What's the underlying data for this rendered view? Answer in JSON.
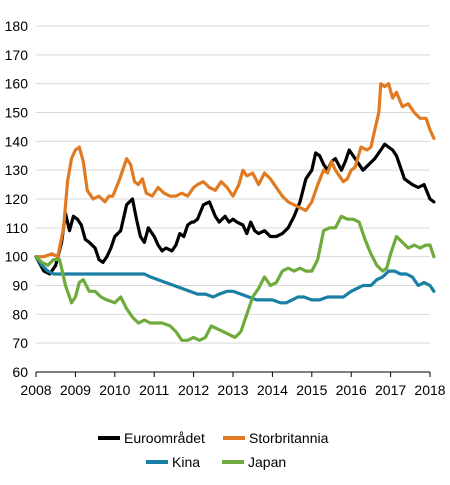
{
  "chart_data": {
    "type": "line",
    "title": "",
    "xlabel": "",
    "ylabel": "",
    "xlim": [
      2008,
      2018
    ],
    "ylim": [
      60,
      180
    ],
    "y_ticks": [
      60,
      70,
      80,
      90,
      100,
      110,
      120,
      130,
      140,
      150,
      160,
      170,
      180
    ],
    "x_ticks": [
      2008,
      2009,
      2010,
      2011,
      2012,
      2013,
      2014,
      2015,
      2016,
      2017,
      2018
    ],
    "grid": "horizontal",
    "legend_position": "bottom",
    "series": [
      {
        "name": "Euroområdet",
        "color": "#000000",
        "x": [
          2008.0,
          2008.2,
          2008.35,
          2008.5,
          2008.65,
          2008.75,
          2008.85,
          2008.95,
          2009.05,
          2009.15,
          2009.25,
          2009.35,
          2009.5,
          2009.6,
          2009.7,
          2009.8,
          2009.9,
          2010.0,
          2010.15,
          2010.3,
          2010.45,
          2010.55,
          2010.65,
          2010.75,
          2010.85,
          2011.0,
          2011.1,
          2011.2,
          2011.3,
          2011.45,
          2011.55,
          2011.65,
          2011.75,
          2011.85,
          2011.95,
          2012.0,
          2012.1,
          2012.25,
          2012.4,
          2012.55,
          2012.65,
          2012.8,
          2012.9,
          2013.0,
          2013.1,
          2013.25,
          2013.35,
          2013.45,
          2013.55,
          2013.65,
          2013.8,
          2013.95,
          2014.1,
          2014.25,
          2014.4,
          2014.55,
          2014.7,
          2014.85,
          2015.0,
          2015.1,
          2015.2,
          2015.3,
          2015.4,
          2015.5,
          2015.6,
          2015.75,
          2015.85,
          2015.95,
          2016.05,
          2016.15,
          2016.3,
          2016.45,
          2016.6,
          2016.75,
          2016.85,
          2016.95,
          2017.05,
          2017.15,
          2017.25,
          2017.35,
          2017.45,
          2017.55,
          2017.7,
          2017.85,
          2018.0,
          2018.1
        ],
        "y": [
          100,
          95,
          94,
          97,
          105,
          115,
          109,
          114,
          113,
          111,
          106,
          105,
          103,
          99,
          98,
          100,
          103,
          107,
          109,
          118,
          120,
          113,
          107,
          105,
          110,
          107,
          104,
          102,
          103,
          102,
          104,
          108,
          107,
          111,
          112,
          112,
          113,
          118,
          119,
          114,
          112,
          114,
          112,
          113,
          112,
          111,
          108,
          112,
          109,
          108,
          109,
          107,
          107,
          108,
          110,
          114,
          119,
          127,
          130,
          136,
          135,
          132,
          130,
          133,
          134,
          130,
          133,
          137,
          135,
          133,
          130,
          132,
          134,
          137,
          139,
          138,
          137,
          135,
          131,
          127,
          126,
          125,
          124,
          125,
          120,
          119
        ]
      },
      {
        "name": "Storbritannia",
        "color": "#e07b24",
        "x": [
          2008.0,
          2008.2,
          2008.4,
          2008.55,
          2008.7,
          2008.8,
          2008.9,
          2009.0,
          2009.1,
          2009.2,
          2009.3,
          2009.45,
          2009.6,
          2009.75,
          2009.85,
          2009.95,
          2010.1,
          2010.2,
          2010.3,
          2010.4,
          2010.5,
          2010.6,
          2010.7,
          2010.8,
          2010.95,
          2011.1,
          2011.25,
          2011.4,
          2011.55,
          2011.7,
          2011.85,
          2012.0,
          2012.1,
          2012.25,
          2012.4,
          2012.55,
          2012.7,
          2012.85,
          2013.0,
          2013.15,
          2013.25,
          2013.35,
          2013.5,
          2013.65,
          2013.8,
          2013.95,
          2014.1,
          2014.25,
          2014.4,
          2014.55,
          2014.7,
          2014.85,
          2015.0,
          2015.15,
          2015.3,
          2015.4,
          2015.5,
          2015.6,
          2015.7,
          2015.8,
          2015.9,
          2016.0,
          2016.1,
          2016.25,
          2016.4,
          2016.5,
          2016.6,
          2016.7,
          2016.75,
          2016.85,
          2016.95,
          2017.05,
          2017.15,
          2017.3,
          2017.45,
          2017.6,
          2017.75,
          2017.9,
          2018.0,
          2018.1
        ],
        "y": [
          100,
          100,
          101,
          100,
          110,
          126,
          134,
          137,
          138,
          133,
          123,
          120,
          121,
          119,
          121,
          121,
          126,
          130,
          134,
          132,
          126,
          125,
          127,
          122,
          121,
          124,
          122,
          121,
          121,
          122,
          121,
          124,
          125,
          126,
          124,
          123,
          126,
          124,
          121,
          125,
          130,
          128,
          129,
          125,
          129,
          127,
          124,
          121,
          119,
          118,
          117,
          116,
          119,
          125,
          130,
          129,
          133,
          130,
          128,
          126,
          127,
          130,
          131,
          138,
          137,
          138,
          144,
          150,
          160,
          159,
          160,
          155,
          157,
          152,
          153,
          150,
          148,
          148,
          144,
          141
        ]
      },
      {
        "name": "Kina",
        "color": "#1a7fa5",
        "x": [
          2008.0,
          2008.15,
          2008.3,
          2008.45,
          2008.6,
          2008.8,
          2009.0,
          2009.25,
          2009.5,
          2009.75,
          2010.0,
          2010.25,
          2010.5,
          2010.75,
          2010.9,
          2011.1,
          2011.3,
          2011.5,
          2011.7,
          2011.9,
          2012.1,
          2012.3,
          2012.5,
          2012.65,
          2012.85,
          2013.0,
          2013.2,
          2013.4,
          2013.6,
          2013.8,
          2014.0,
          2014.2,
          2014.35,
          2014.5,
          2014.65,
          2014.8,
          2015.0,
          2015.2,
          2015.4,
          2015.6,
          2015.8,
          2016.0,
          2016.15,
          2016.3,
          2016.5,
          2016.65,
          2016.8,
          2016.95,
          2017.1,
          2017.25,
          2017.4,
          2017.55,
          2017.7,
          2017.85,
          2018.0,
          2018.1
        ],
        "y": [
          100,
          97,
          95,
          94,
          94,
          94,
          94,
          94,
          94,
          94,
          94,
          94,
          94,
          94,
          93,
          92,
          91,
          90,
          89,
          88,
          87,
          87,
          86,
          87,
          88,
          88,
          87,
          86,
          85,
          85,
          85,
          84,
          84,
          85,
          86,
          86,
          85,
          85,
          86,
          86,
          86,
          88,
          89,
          90,
          90,
          92,
          93,
          95,
          95,
          94,
          94,
          93,
          90,
          91,
          90,
          88
        ]
      },
      {
        "name": "Japan",
        "color": "#6fab3c",
        "x": [
          2008.0,
          2008.15,
          2008.3,
          2008.45,
          2008.6,
          2008.75,
          2008.9,
          2009.0,
          2009.1,
          2009.2,
          2009.35,
          2009.5,
          2009.65,
          2009.8,
          2010.0,
          2010.15,
          2010.3,
          2010.45,
          2010.6,
          2010.75,
          2010.9,
          2011.0,
          2011.2,
          2011.4,
          2011.55,
          2011.7,
          2011.85,
          2012.0,
          2012.15,
          2012.3,
          2012.45,
          2012.6,
          2012.75,
          2012.9,
          2013.05,
          2013.2,
          2013.35,
          2013.5,
          2013.65,
          2013.8,
          2013.95,
          2014.1,
          2014.25,
          2014.4,
          2014.55,
          2014.7,
          2014.85,
          2015.0,
          2015.15,
          2015.3,
          2015.45,
          2015.6,
          2015.75,
          2015.9,
          2016.05,
          2016.2,
          2016.35,
          2016.5,
          2016.65,
          2016.8,
          2016.9,
          2017.0,
          2017.15,
          2017.3,
          2017.45,
          2017.6,
          2017.75,
          2017.9,
          2018.0,
          2018.1
        ],
        "y": [
          100,
          98,
          97,
          99,
          99,
          90,
          84,
          86,
          91,
          92,
          88,
          88,
          86,
          85,
          84,
          86,
          82,
          79,
          77,
          78,
          77,
          77,
          77,
          76,
          74,
          71,
          71,
          72,
          71,
          72,
          76,
          75,
          74,
          73,
          72,
          74,
          80,
          86,
          89,
          93,
          90,
          91,
          95,
          96,
          95,
          96,
          95,
          95,
          99,
          109,
          110,
          110,
          114,
          113,
          113,
          112,
          106,
          101,
          97,
          95,
          96,
          101,
          107,
          105,
          103,
          104,
          103,
          104,
          104,
          100
        ]
      }
    ]
  }
}
